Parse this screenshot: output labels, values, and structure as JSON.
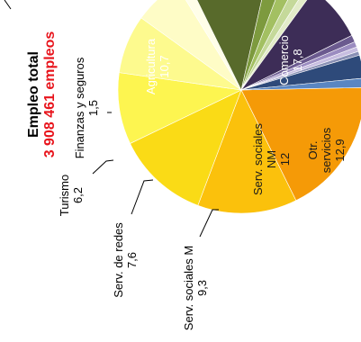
{
  "title_line1": "Empleo total",
  "title_line2": "3 908 461 empleos",
  "chart_data": {
    "type": "pie",
    "title": "Empleo total",
    "total_label": "3 908 461 empleos",
    "unit": "%",
    "colors_note": "slices as drawn, clockwise from top",
    "slices": [
      {
        "label": "Comercio",
        "value": "17,8",
        "v": 17.8,
        "color": "#f59a07"
      },
      {
        "label": "Otr. servicios",
        "value": "12,9",
        "v": 12.9,
        "color": "#fbc10c"
      },
      {
        "label": "Serv. sociales NM",
        "value": "12",
        "v": 12.0,
        "color": "#fadb16"
      },
      {
        "label": "Serv. sociales M",
        "value": "9,3",
        "v": 9.3,
        "color": "#fdf550"
      },
      {
        "label": "Serv. de redes",
        "value": "7,6",
        "v": 7.6,
        "color": "#fdfa8e"
      },
      {
        "label": "Turismo",
        "value": "6,2",
        "v": 6.2,
        "color": "#fefcc6"
      },
      {
        "label": "Finanzas y seguros",
        "value": "1,5",
        "v": 1.5,
        "color": "#fffee8"
      },
      {
        "label": "Agricultura",
        "value": "10,7",
        "v": 10.7,
        "color": "#586a2b"
      },
      {
        "label": "",
        "value": "",
        "v": 2.2,
        "color": "#7d9a3e"
      },
      {
        "label": "",
        "value": "",
        "v": 1.8,
        "color": "#a3c062"
      },
      {
        "label": "",
        "value": "",
        "v": 1.4,
        "color": "#c5d99a"
      },
      {
        "label": "",
        "value": "",
        "v": 1.0,
        "color": "#e3ecc9"
      },
      {
        "label": "",
        "value": "",
        "v": 7.6,
        "color": "#3d2d57"
      },
      {
        "label": "",
        "value": "",
        "v": 0.9,
        "color": "#6b5a8f"
      },
      {
        "label": "",
        "value": "",
        "v": 0.7,
        "color": "#9b8cc0"
      },
      {
        "label": "",
        "value": "",
        "v": 0.6,
        "color": "#c7bde0"
      },
      {
        "label": "",
        "value": "",
        "v": 0.5,
        "color": "#8a90b5"
      },
      {
        "label": "",
        "value": "",
        "v": 3.0,
        "color": "#2e4a7a"
      },
      {
        "label": "",
        "value": "",
        "v": 1.2,
        "color": "#5a86c2"
      }
    ]
  }
}
